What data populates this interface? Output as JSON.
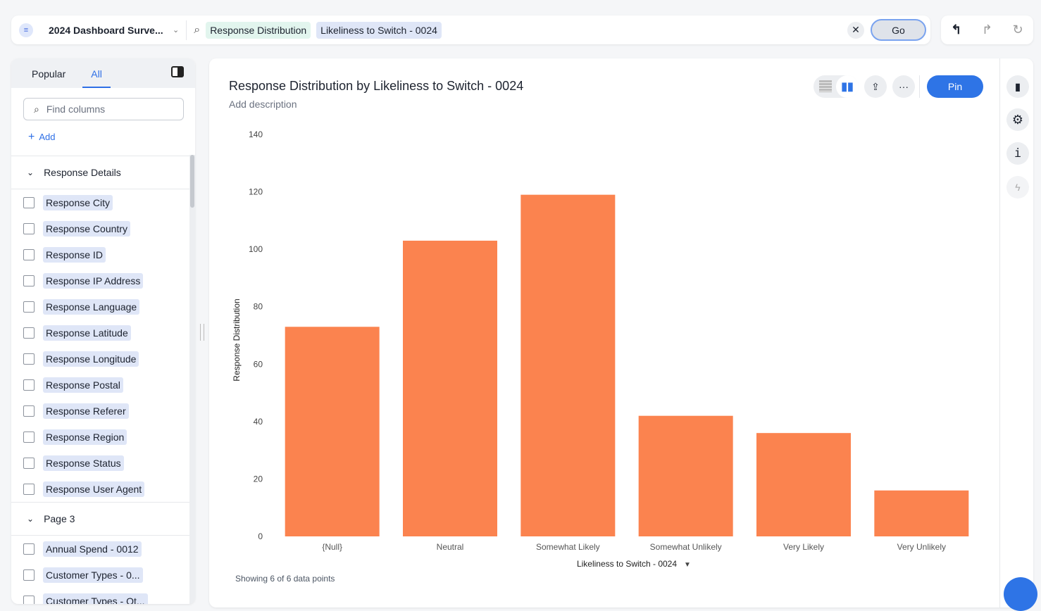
{
  "topbar": {
    "datasource": "2024 Dashboard Surve...",
    "chips": [
      "Response Distribution",
      "Likeliness to Switch - 0024"
    ],
    "go": "Go"
  },
  "left": {
    "tabs": [
      "Popular",
      "All"
    ],
    "search_placeholder": "Find columns",
    "add": "Add",
    "groups": [
      {
        "name": "Response Details",
        "items": [
          "Response City",
          "Response Country",
          "Response ID",
          "Response IP Address",
          "Response Language",
          "Response Latitude",
          "Response Longitude",
          "Response Postal",
          "Response Referer",
          "Response Region",
          "Response Status",
          "Response User Agent"
        ]
      },
      {
        "name": "Page 3",
        "items": [
          "Annual Spend - 0012",
          "Customer Types - 0...",
          "Customer Types - Ot..."
        ]
      }
    ]
  },
  "main": {
    "title": "Response Distribution by Likeliness to Switch - 0024",
    "description": "Add description",
    "pin": "Pin",
    "showing": "Showing 6 of 6 data points"
  },
  "chart_data": {
    "type": "bar",
    "categories": [
      "{Null}",
      "Neutral",
      "Somewhat Likely",
      "Somewhat Unlikely",
      "Very Likely",
      "Very Unlikely"
    ],
    "values": [
      73,
      103,
      119,
      42,
      36,
      16
    ],
    "xlabel": "Likeliness to Switch - 0024",
    "ylabel": "Response Distribution",
    "ylim": [
      0,
      140
    ],
    "yticks": [
      0,
      20,
      40,
      60,
      80,
      100,
      120,
      140
    ],
    "color": "#fb834f",
    "grid": false
  }
}
